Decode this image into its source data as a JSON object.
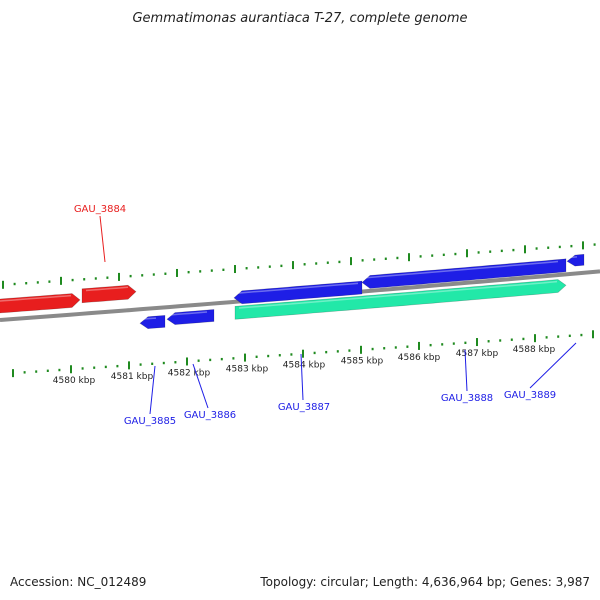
{
  "title": "Gemmatimonas aurantiaca T-27, complete genome",
  "footer": {
    "accession": "Accession: NC_012489",
    "summary": "Topology: circular; Length: 4,636,964 bp; Genes: 3,987"
  },
  "colors": {
    "backbone": "#8a8a8a",
    "tick": "#1f8a1f",
    "gene_forward": "#e81e1e",
    "gene_reverse": "#1e1ee6",
    "rna_feature": "#22e8a8",
    "label_forward": "#e81e1e",
    "label_reverse": "#1e1ee6"
  },
  "scale": {
    "unit": "kbp",
    "labels": [
      "4580 kbp",
      "4581 kbp",
      "4582 kbp",
      "4583 kbp",
      "4584 kbp",
      "4585 kbp",
      "4586 kbp",
      "4587 kbp",
      "4588 kbp"
    ]
  },
  "genes": [
    {
      "label": "GAU_3884",
      "strand": "forward"
    },
    {
      "label": "GAU_3885",
      "strand": "reverse"
    },
    {
      "label": "GAU_3886",
      "strand": "reverse"
    },
    {
      "label": "GAU_3887",
      "strand": "reverse"
    },
    {
      "label": "GAU_3888",
      "strand": "reverse"
    },
    {
      "label": "GAU_3889",
      "strand": "reverse"
    }
  ]
}
